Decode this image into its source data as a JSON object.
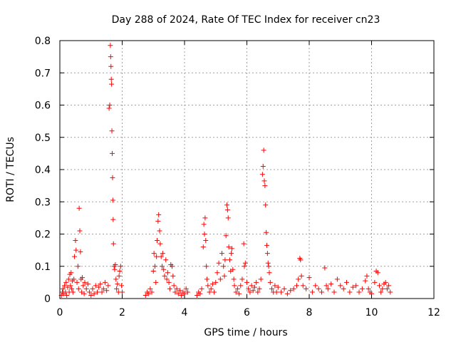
{
  "chart_data": {
    "type": "scatter",
    "title": "Day 288 of 2024, Rate Of TEC Index for receiver cn23",
    "xlabel": "GPS time / hours",
    "ylabel": "ROTI / TECUs",
    "xlim": [
      0,
      12
    ],
    "ylim": [
      0,
      0.8
    ],
    "x_ticks": [
      0,
      2,
      4,
      6,
      8,
      10,
      12
    ],
    "x_tick_labels": [
      "0",
      "2",
      "4",
      "6",
      "8",
      "10",
      "12"
    ],
    "y_ticks": [
      0,
      0.1,
      0.2,
      0.3,
      0.4,
      0.5,
      0.6,
      0.7,
      0.8
    ],
    "y_tick_labels": [
      "0",
      "0.1",
      "0.2",
      "0.3",
      "0.4",
      "0.5",
      "0.6",
      "0.7",
      "0.8"
    ],
    "grid": true,
    "marker": "+",
    "color": "#ff0000",
    "series": [
      {
        "name": "ROTI",
        "points": [
          [
            0.05,
            0.01
          ],
          [
            0.08,
            0.02
          ],
          [
            0.1,
            0.03
          ],
          [
            0.12,
            0.015
          ],
          [
            0.15,
            0.04
          ],
          [
            0.18,
            0.02
          ],
          [
            0.2,
            0.05
          ],
          [
            0.22,
            0.01
          ],
          [
            0.25,
            0.035
          ],
          [
            0.28,
            0.06
          ],
          [
            0.3,
            0.02
          ],
          [
            0.32,
            0.075
          ],
          [
            0.34,
            0.04
          ],
          [
            0.36,
            0.08
          ],
          [
            0.38,
            0.03
          ],
          [
            0.4,
            0.055
          ],
          [
            0.42,
            0.02
          ],
          [
            0.45,
            0.06
          ],
          [
            0.47,
            0.13
          ],
          [
            0.5,
            0.18
          ],
          [
            0.52,
            0.15
          ],
          [
            0.55,
            0.05
          ],
          [
            0.58,
            0.1
          ],
          [
            0.6,
            0.03
          ],
          [
            0.62,
            0.28
          ],
          [
            0.64,
            0.21
          ],
          [
            0.66,
            0.145
          ],
          [
            0.68,
            0.06
          ],
          [
            0.7,
            0.02
          ],
          [
            0.72,
            0.065
          ],
          [
            0.75,
            0.04
          ],
          [
            0.78,
            0.015
          ],
          [
            0.8,
            0.05
          ],
          [
            0.85,
            0.03
          ],
          [
            0.9,
            0.045
          ],
          [
            0.95,
            0.02
          ],
          [
            1.0,
            0.01
          ],
          [
            1.05,
            0.03
          ],
          [
            1.1,
            0.015
          ],
          [
            1.15,
            0.04
          ],
          [
            1.2,
            0.02
          ],
          [
            1.25,
            0.035
          ],
          [
            1.3,
            0.045
          ],
          [
            1.35,
            0.02
          ],
          [
            1.4,
            0.03
          ],
          [
            1.45,
            0.05
          ],
          [
            1.5,
            0.025
          ],
          [
            1.55,
            0.04
          ],
          [
            1.58,
            0.59
          ],
          [
            1.6,
            0.6
          ],
          [
            1.62,
            0.785
          ],
          [
            1.63,
            0.75
          ],
          [
            1.64,
            0.72
          ],
          [
            1.65,
            0.68
          ],
          [
            1.66,
            0.665
          ],
          [
            1.67,
            0.52
          ],
          [
            1.68,
            0.45
          ],
          [
            1.69,
            0.375
          ],
          [
            1.7,
            0.305
          ],
          [
            1.71,
            0.245
          ],
          [
            1.72,
            0.17
          ],
          [
            1.74,
            0.1
          ],
          [
            1.76,
            0.09
          ],
          [
            1.78,
            0.105
          ],
          [
            1.8,
            0.06
          ],
          [
            1.82,
            0.03
          ],
          [
            1.85,
            0.045
          ],
          [
            1.88,
            0.02
          ],
          [
            1.9,
            0.07
          ],
          [
            1.92,
            0.085
          ],
          [
            1.95,
            0.1
          ],
          [
            1.98,
            0.04
          ],
          [
            2.0,
            0.02
          ],
          [
            2.75,
            0.01
          ],
          [
            2.8,
            0.02
          ],
          [
            2.85,
            0.015
          ],
          [
            2.9,
            0.03
          ],
          [
            2.95,
            0.02
          ],
          [
            3.0,
            0.085
          ],
          [
            3.02,
            0.14
          ],
          [
            3.05,
            0.1
          ],
          [
            3.08,
            0.05
          ],
          [
            3.1,
            0.13
          ],
          [
            3.12,
            0.18
          ],
          [
            3.15,
            0.24
          ],
          [
            3.17,
            0.26
          ],
          [
            3.2,
            0.21
          ],
          [
            3.22,
            0.17
          ],
          [
            3.25,
            0.13
          ],
          [
            3.28,
            0.1
          ],
          [
            3.3,
            0.14
          ],
          [
            3.33,
            0.09
          ],
          [
            3.36,
            0.07
          ],
          [
            3.4,
            0.12
          ],
          [
            3.43,
            0.06
          ],
          [
            3.46,
            0.08
          ],
          [
            3.5,
            0.05
          ],
          [
            3.53,
            0.03
          ],
          [
            3.56,
            0.105
          ],
          [
            3.6,
            0.1
          ],
          [
            3.63,
            0.07
          ],
          [
            3.66,
            0.04
          ],
          [
            3.7,
            0.02
          ],
          [
            3.75,
            0.03
          ],
          [
            3.8,
            0.015
          ],
          [
            3.85,
            0.025
          ],
          [
            3.9,
            0.01
          ],
          [
            3.95,
            0.02
          ],
          [
            4.0,
            0.015
          ],
          [
            4.05,
            0.03
          ],
          [
            4.1,
            0.02
          ],
          [
            4.4,
            0.01
          ],
          [
            4.45,
            0.02
          ],
          [
            4.5,
            0.015
          ],
          [
            4.55,
            0.03
          ],
          [
            4.6,
            0.16
          ],
          [
            4.62,
            0.23
          ],
          [
            4.64,
            0.2
          ],
          [
            4.66,
            0.25
          ],
          [
            4.68,
            0.18
          ],
          [
            4.7,
            0.1
          ],
          [
            4.72,
            0.06
          ],
          [
            4.75,
            0.04
          ],
          [
            4.8,
            0.02
          ],
          [
            4.85,
            0.03
          ],
          [
            4.9,
            0.045
          ],
          [
            4.95,
            0.02
          ],
          [
            5.0,
            0.05
          ],
          [
            5.05,
            0.08
          ],
          [
            5.1,
            0.11
          ],
          [
            5.15,
            0.06
          ],
          [
            5.2,
            0.14
          ],
          [
            5.25,
            0.1
          ],
          [
            5.28,
            0.07
          ],
          [
            5.3,
            0.12
          ],
          [
            5.33,
            0.195
          ],
          [
            5.36,
            0.29
          ],
          [
            5.38,
            0.275
          ],
          [
            5.4,
            0.25
          ],
          [
            5.42,
            0.16
          ],
          [
            5.45,
            0.12
          ],
          [
            5.48,
            0.085
          ],
          [
            5.5,
            0.14
          ],
          [
            5.52,
            0.155
          ],
          [
            5.55,
            0.09
          ],
          [
            5.58,
            0.06
          ],
          [
            5.6,
            0.04
          ],
          [
            5.65,
            0.02
          ],
          [
            5.7,
            0.03
          ],
          [
            5.75,
            0.015
          ],
          [
            5.8,
            0.04
          ],
          [
            5.85,
            0.06
          ],
          [
            5.9,
            0.17
          ],
          [
            5.92,
            0.1
          ],
          [
            5.95,
            0.11
          ],
          [
            6.0,
            0.05
          ],
          [
            6.05,
            0.03
          ],
          [
            6.1,
            0.02
          ],
          [
            6.15,
            0.04
          ],
          [
            6.2,
            0.025
          ],
          [
            6.25,
            0.035
          ],
          [
            6.3,
            0.05
          ],
          [
            6.35,
            0.02
          ],
          [
            6.4,
            0.03
          ],
          [
            6.45,
            0.06
          ],
          [
            6.5,
            0.385
          ],
          [
            6.52,
            0.41
          ],
          [
            6.54,
            0.46
          ],
          [
            6.56,
            0.365
          ],
          [
            6.58,
            0.35
          ],
          [
            6.6,
            0.29
          ],
          [
            6.62,
            0.205
          ],
          [
            6.64,
            0.165
          ],
          [
            6.66,
            0.14
          ],
          [
            6.68,
            0.11
          ],
          [
            6.7,
            0.1
          ],
          [
            6.72,
            0.08
          ],
          [
            6.75,
            0.05
          ],
          [
            6.8,
            0.03
          ],
          [
            6.85,
            0.02
          ],
          [
            6.9,
            0.04
          ],
          [
            6.95,
            0.02
          ],
          [
            7.0,
            0.035
          ],
          [
            7.1,
            0.02
          ],
          [
            7.2,
            0.03
          ],
          [
            7.3,
            0.015
          ],
          [
            7.4,
            0.025
          ],
          [
            7.5,
            0.03
          ],
          [
            7.6,
            0.04
          ],
          [
            7.65,
            0.06
          ],
          [
            7.7,
            0.125
          ],
          [
            7.72,
            0.12
          ],
          [
            7.75,
            0.07
          ],
          [
            7.8,
            0.04
          ],
          [
            7.9,
            0.03
          ],
          [
            8.0,
            0.065
          ],
          [
            8.1,
            0.02
          ],
          [
            8.2,
            0.04
          ],
          [
            8.3,
            0.03
          ],
          [
            8.4,
            0.02
          ],
          [
            8.5,
            0.095
          ],
          [
            8.55,
            0.04
          ],
          [
            8.6,
            0.03
          ],
          [
            8.7,
            0.045
          ],
          [
            8.8,
            0.02
          ],
          [
            8.9,
            0.06
          ],
          [
            9.0,
            0.04
          ],
          [
            9.1,
            0.03
          ],
          [
            9.2,
            0.05
          ],
          [
            9.3,
            0.02
          ],
          [
            9.4,
            0.035
          ],
          [
            9.5,
            0.04
          ],
          [
            9.6,
            0.02
          ],
          [
            9.7,
            0.03
          ],
          [
            9.8,
            0.055
          ],
          [
            9.85,
            0.07
          ],
          [
            9.9,
            0.03
          ],
          [
            9.95,
            0.02
          ],
          [
            10.0,
            0.015
          ],
          [
            10.1,
            0.05
          ],
          [
            10.15,
            0.085
          ],
          [
            10.2,
            0.08
          ],
          [
            10.25,
            0.04
          ],
          [
            10.3,
            0.02
          ],
          [
            10.35,
            0.03
          ],
          [
            10.4,
            0.045
          ],
          [
            10.45,
            0.05
          ],
          [
            10.5,
            0.03
          ],
          [
            10.55,
            0.04
          ],
          [
            10.6,
            0.02
          ]
        ]
      }
    ]
  }
}
